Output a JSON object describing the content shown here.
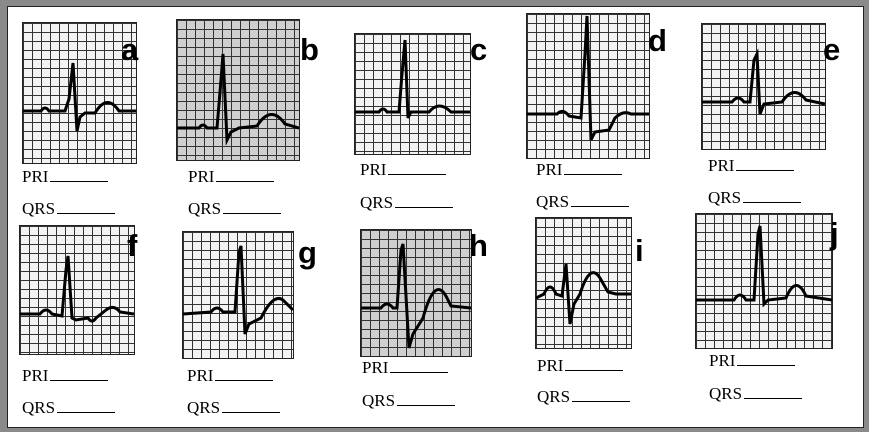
{
  "panels": [
    {
      "letter": "a",
      "pri_label": "PRI",
      "qrs_label": "QRS"
    },
    {
      "letter": "b",
      "pri_label": "PRI",
      "qrs_label": "QRS"
    },
    {
      "letter": "c",
      "pri_label": "PRI",
      "qrs_label": "QRS"
    },
    {
      "letter": "d",
      "pri_label": "PRI",
      "qrs_label": "QRS"
    },
    {
      "letter": "e",
      "pri_label": "PRI",
      "qrs_label": "QRS"
    },
    {
      "letter": "f",
      "pri_label": "PRI",
      "qrs_label": "QRS"
    },
    {
      "letter": "g",
      "pri_label": "PRI",
      "qrs_label": "QRS"
    },
    {
      "letter": "h",
      "pri_label": "PRI",
      "qrs_label": "QRS"
    },
    {
      "letter": "i",
      "pri_label": "PRI",
      "qrs_label": "QRS"
    },
    {
      "letter": "j",
      "pri_label": "PRI",
      "qrs_label": "QRS"
    }
  ]
}
